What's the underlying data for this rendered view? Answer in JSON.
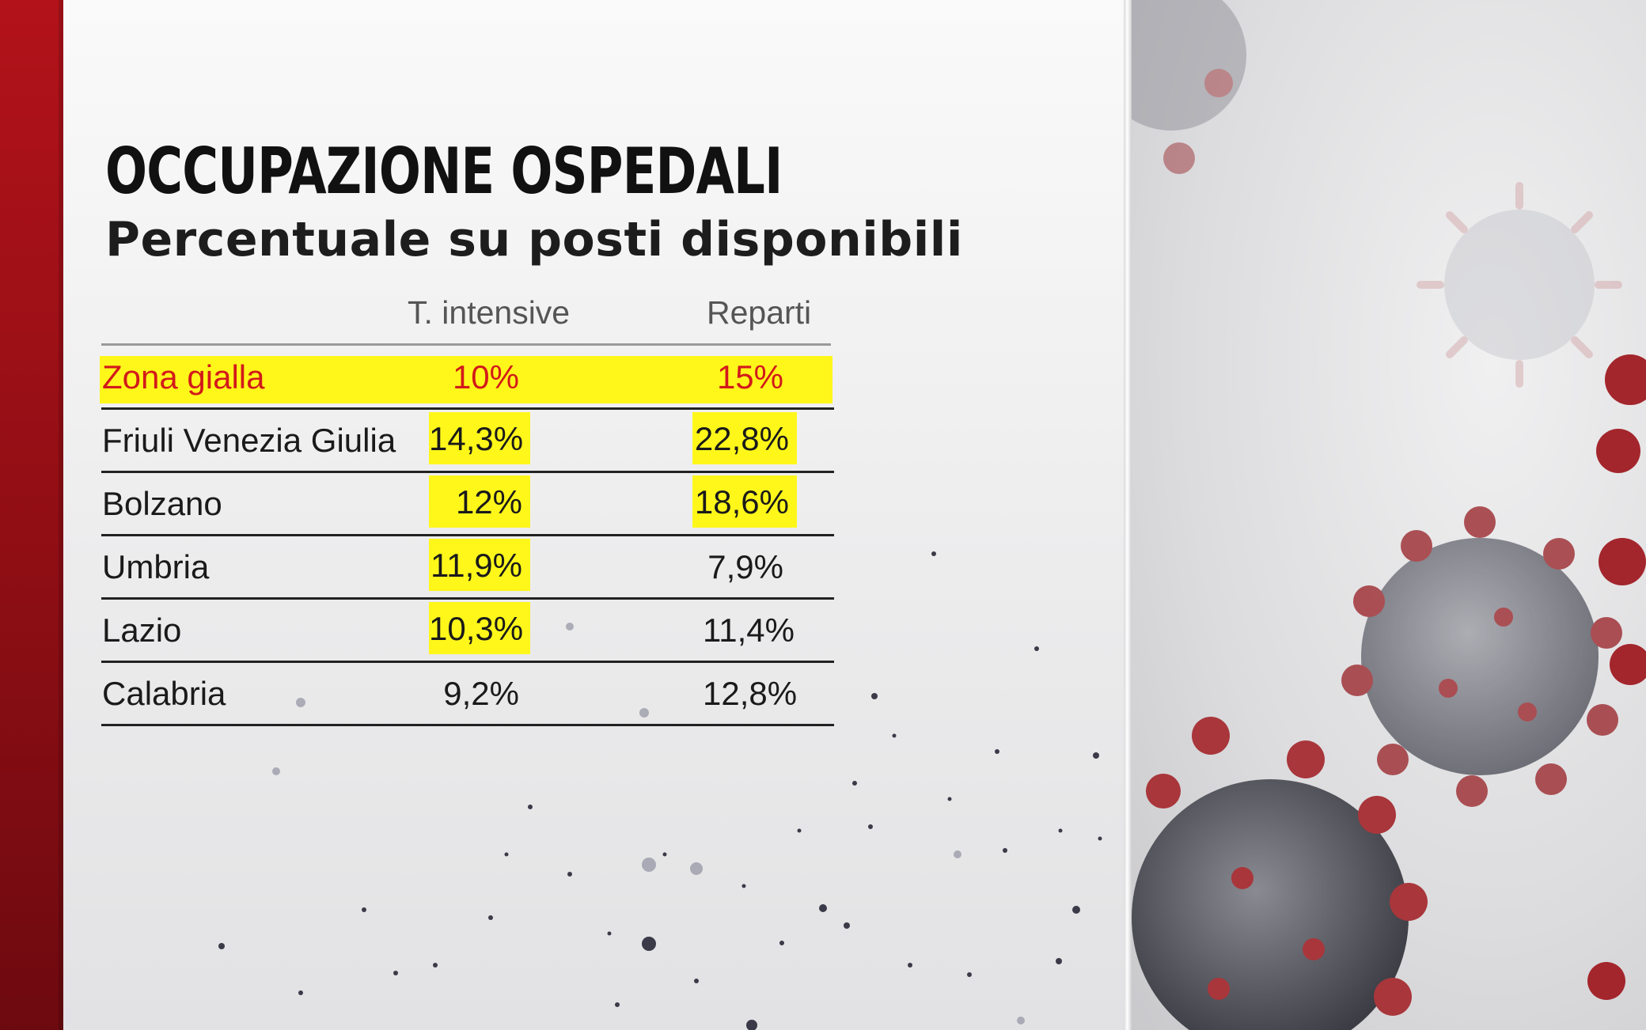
{
  "title": "OCCUPAZIONE OSPEDALI",
  "subtitle": "Percentuale su posti disponibili",
  "colors": {
    "highlight": "#fff71a",
    "threshold_text": "#d21a1a",
    "brand_red": "#b3121a"
  },
  "chart_data": {
    "type": "table",
    "title": "OCCUPAZIONE OSPEDALI",
    "subtitle": "Percentuale su posti disponibili",
    "columns": [
      "T. intensive",
      "Reparti"
    ],
    "threshold_row": {
      "label": "Zona gialla",
      "values": [
        "10%",
        "15%"
      ]
    },
    "rows": [
      {
        "label": "Friuli Venezia Giulia",
        "values": [
          "14,3%",
          "22,8%"
        ],
        "highlighted": [
          true,
          true
        ]
      },
      {
        "label": "Bolzano",
        "values": [
          "12%",
          "18,6%"
        ],
        "highlighted": [
          true,
          true
        ]
      },
      {
        "label": "Umbria",
        "values": [
          "11,9%",
          "7,9%"
        ],
        "highlighted": [
          true,
          false
        ]
      },
      {
        "label": "Lazio",
        "values": [
          "10,3%",
          "11,4%"
        ],
        "highlighted": [
          true,
          false
        ]
      },
      {
        "label": "Calabria",
        "values": [
          "9,2%",
          "12,8%"
        ],
        "highlighted": [
          false,
          false
        ]
      }
    ]
  }
}
